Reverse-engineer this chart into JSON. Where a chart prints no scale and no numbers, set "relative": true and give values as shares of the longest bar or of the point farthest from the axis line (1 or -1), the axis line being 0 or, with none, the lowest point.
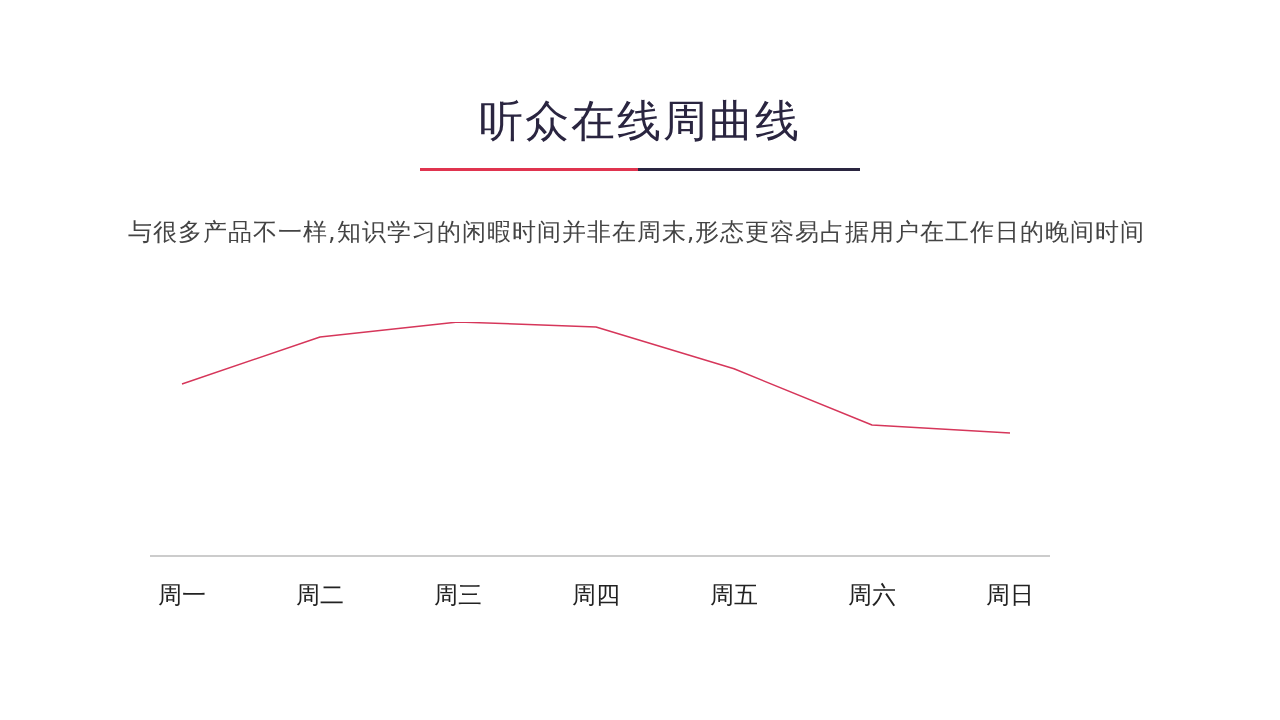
{
  "chart_data": {
    "type": "line",
    "title": "听众在线周曲线",
    "subtitle": "与很多产品不一样,知识学习的闲暇时间并非在周末,形态更容易占据用户在工作日的晚间时间",
    "categories": [
      "周一",
      "周二",
      "周三",
      "周四",
      "周五",
      "周六",
      "周日"
    ],
    "relative": true,
    "series": [
      {
        "color": "#d6365a",
        "values": [
          0.735,
          0.936,
          1,
          0.979,
          0.8,
          0.56,
          0.526
        ]
      }
    ]
  }
}
